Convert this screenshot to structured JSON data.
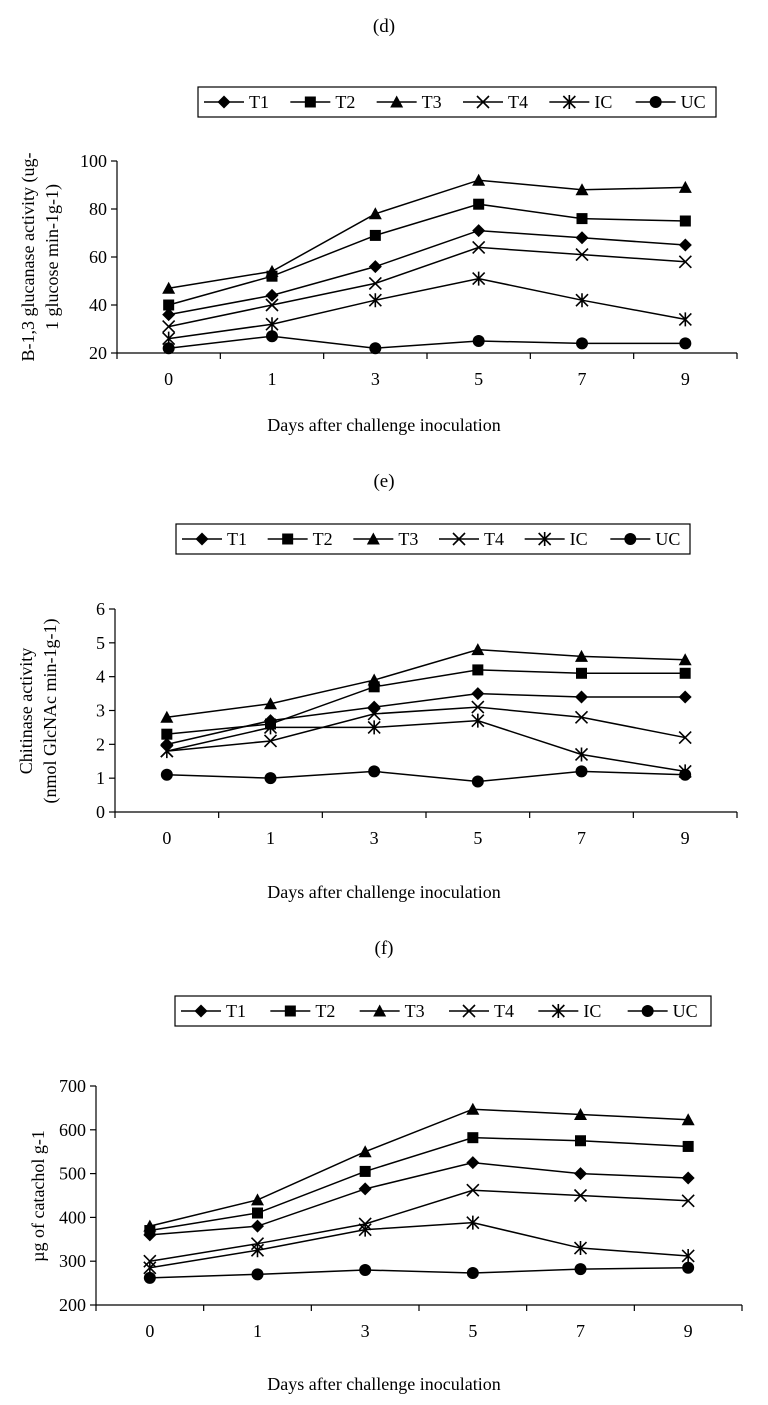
{
  "chart_data": [
    {
      "type": "line",
      "title": "(d)",
      "xlabel": "Days after challenge inoculation",
      "ylabel": [
        "B-1,3 glucanase activity (ug-",
        "1 glucose min-1g-1)"
      ],
      "categories": [
        "0",
        "1",
        "3",
        "5",
        "7",
        "9"
      ],
      "ylim": [
        20,
        100
      ],
      "yticks": [
        "20",
        "40",
        "60",
        "80",
        "100"
      ],
      "legend_position": "top",
      "grid": false,
      "series": [
        {
          "name": "T1",
          "marker": "diamond",
          "values": [
            36,
            44,
            56,
            71,
            68,
            65
          ]
        },
        {
          "name": "T2",
          "marker": "square",
          "values": [
            40,
            52,
            69,
            82,
            76,
            75
          ]
        },
        {
          "name": "T3",
          "marker": "triangle",
          "values": [
            47,
            54,
            78,
            92,
            88,
            89
          ]
        },
        {
          "name": "T4",
          "marker": "x",
          "values": [
            31,
            40,
            49,
            64,
            61,
            58
          ]
        },
        {
          "name": "IC",
          "marker": "star",
          "values": [
            26,
            32,
            42,
            51,
            42,
            34
          ]
        },
        {
          "name": "UC",
          "marker": "circle",
          "values": [
            22,
            27,
            22,
            25,
            24,
            24
          ]
        }
      ]
    },
    {
      "type": "line",
      "title": "(e)",
      "xlabel": "Days after challenge inoculation",
      "ylabel": [
        "Chitinase activity",
        "(nmol GlcNAc min-1g-1)"
      ],
      "categories": [
        "0",
        "1",
        "3",
        "5",
        "7",
        "9"
      ],
      "ylim": [
        0,
        6
      ],
      "yticks": [
        "0",
        "1",
        "2",
        "3",
        "4",
        "5",
        "6"
      ],
      "legend_position": "top",
      "grid": false,
      "series": [
        {
          "name": "T1",
          "marker": "diamond",
          "values": [
            2.0,
            2.7,
            3.1,
            3.5,
            3.4,
            3.4
          ]
        },
        {
          "name": "T2",
          "marker": "square",
          "values": [
            2.3,
            2.6,
            3.7,
            4.2,
            4.1,
            4.1
          ]
        },
        {
          "name": "T3",
          "marker": "triangle",
          "values": [
            2.8,
            3.2,
            3.9,
            4.8,
            4.6,
            4.5
          ]
        },
        {
          "name": "T4",
          "marker": "x",
          "values": [
            1.8,
            2.1,
            2.9,
            3.1,
            2.8,
            2.2
          ]
        },
        {
          "name": "IC",
          "marker": "star",
          "values": [
            1.8,
            2.5,
            2.5,
            2.7,
            1.7,
            1.2
          ]
        },
        {
          "name": "UC",
          "marker": "circle",
          "values": [
            1.1,
            1.0,
            1.2,
            0.9,
            1.2,
            1.1
          ]
        }
      ]
    },
    {
      "type": "line",
      "title": "(f)",
      "xlabel": "Days after challenge inoculation",
      "ylabel": [
        "µg of catachol g-1"
      ],
      "categories": [
        "0",
        "1",
        "3",
        "5",
        "7",
        "9"
      ],
      "ylim": [
        200,
        700
      ],
      "yticks": [
        "200",
        "300",
        "400",
        "500",
        "600",
        "700"
      ],
      "legend_position": "top",
      "grid": false,
      "series": [
        {
          "name": "T1",
          "marker": "diamond",
          "values": [
            360,
            380,
            465,
            525,
            500,
            490
          ]
        },
        {
          "name": "T2",
          "marker": "square",
          "values": [
            370,
            410,
            505,
            582,
            575,
            562
          ]
        },
        {
          "name": "T3",
          "marker": "triangle",
          "values": [
            380,
            440,
            550,
            647,
            635,
            623
          ]
        },
        {
          "name": "T4",
          "marker": "x",
          "values": [
            300,
            340,
            385,
            462,
            450,
            438
          ]
        },
        {
          "name": "IC",
          "marker": "star",
          "values": [
            285,
            325,
            372,
            388,
            330,
            312
          ]
        },
        {
          "name": "UC",
          "marker": "circle",
          "values": [
            262,
            270,
            280,
            273,
            282,
            285
          ]
        }
      ]
    }
  ]
}
